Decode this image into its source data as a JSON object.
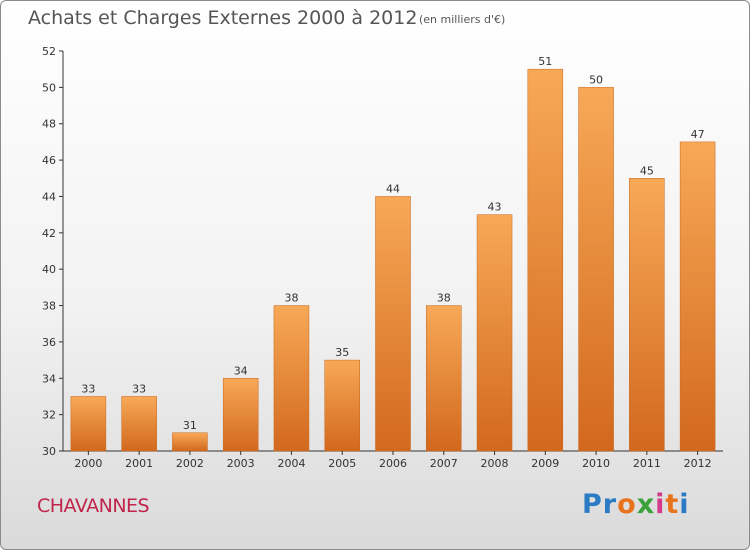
{
  "chart_data": {
    "type": "bar",
    "title": "Achats et Charges Externes 2000 à 2012",
    "subtitle": "(en milliers d'€)",
    "categories": [
      "2000",
      "2001",
      "2002",
      "2003",
      "2004",
      "2005",
      "2006",
      "2007",
      "2008",
      "2009",
      "2010",
      "2011",
      "2012"
    ],
    "values": [
      33,
      33,
      31,
      34,
      38,
      35,
      44,
      38,
      43,
      51,
      50,
      45,
      47
    ],
    "xlabel": "",
    "ylabel": "",
    "ylim": [
      30,
      52
    ],
    "yticks": [
      30,
      32,
      34,
      36,
      38,
      40,
      42,
      44,
      46,
      48,
      50,
      52
    ],
    "grid": false,
    "bar_color_light": "#f7a957",
    "bar_color_dark": "#d2681d",
    "axis_color": "#333333"
  },
  "location": "CHAVANNES",
  "brand": {
    "name": "Proxiti",
    "letters": [
      "P",
      "r",
      "o",
      "x",
      "i",
      "t",
      "i"
    ],
    "colors": [
      "#2a7bc4",
      "#2a7bc4",
      "#e8731c",
      "#3aa23a",
      "#d43a8c",
      "#e8731c",
      "#2a7bc4"
    ]
  }
}
